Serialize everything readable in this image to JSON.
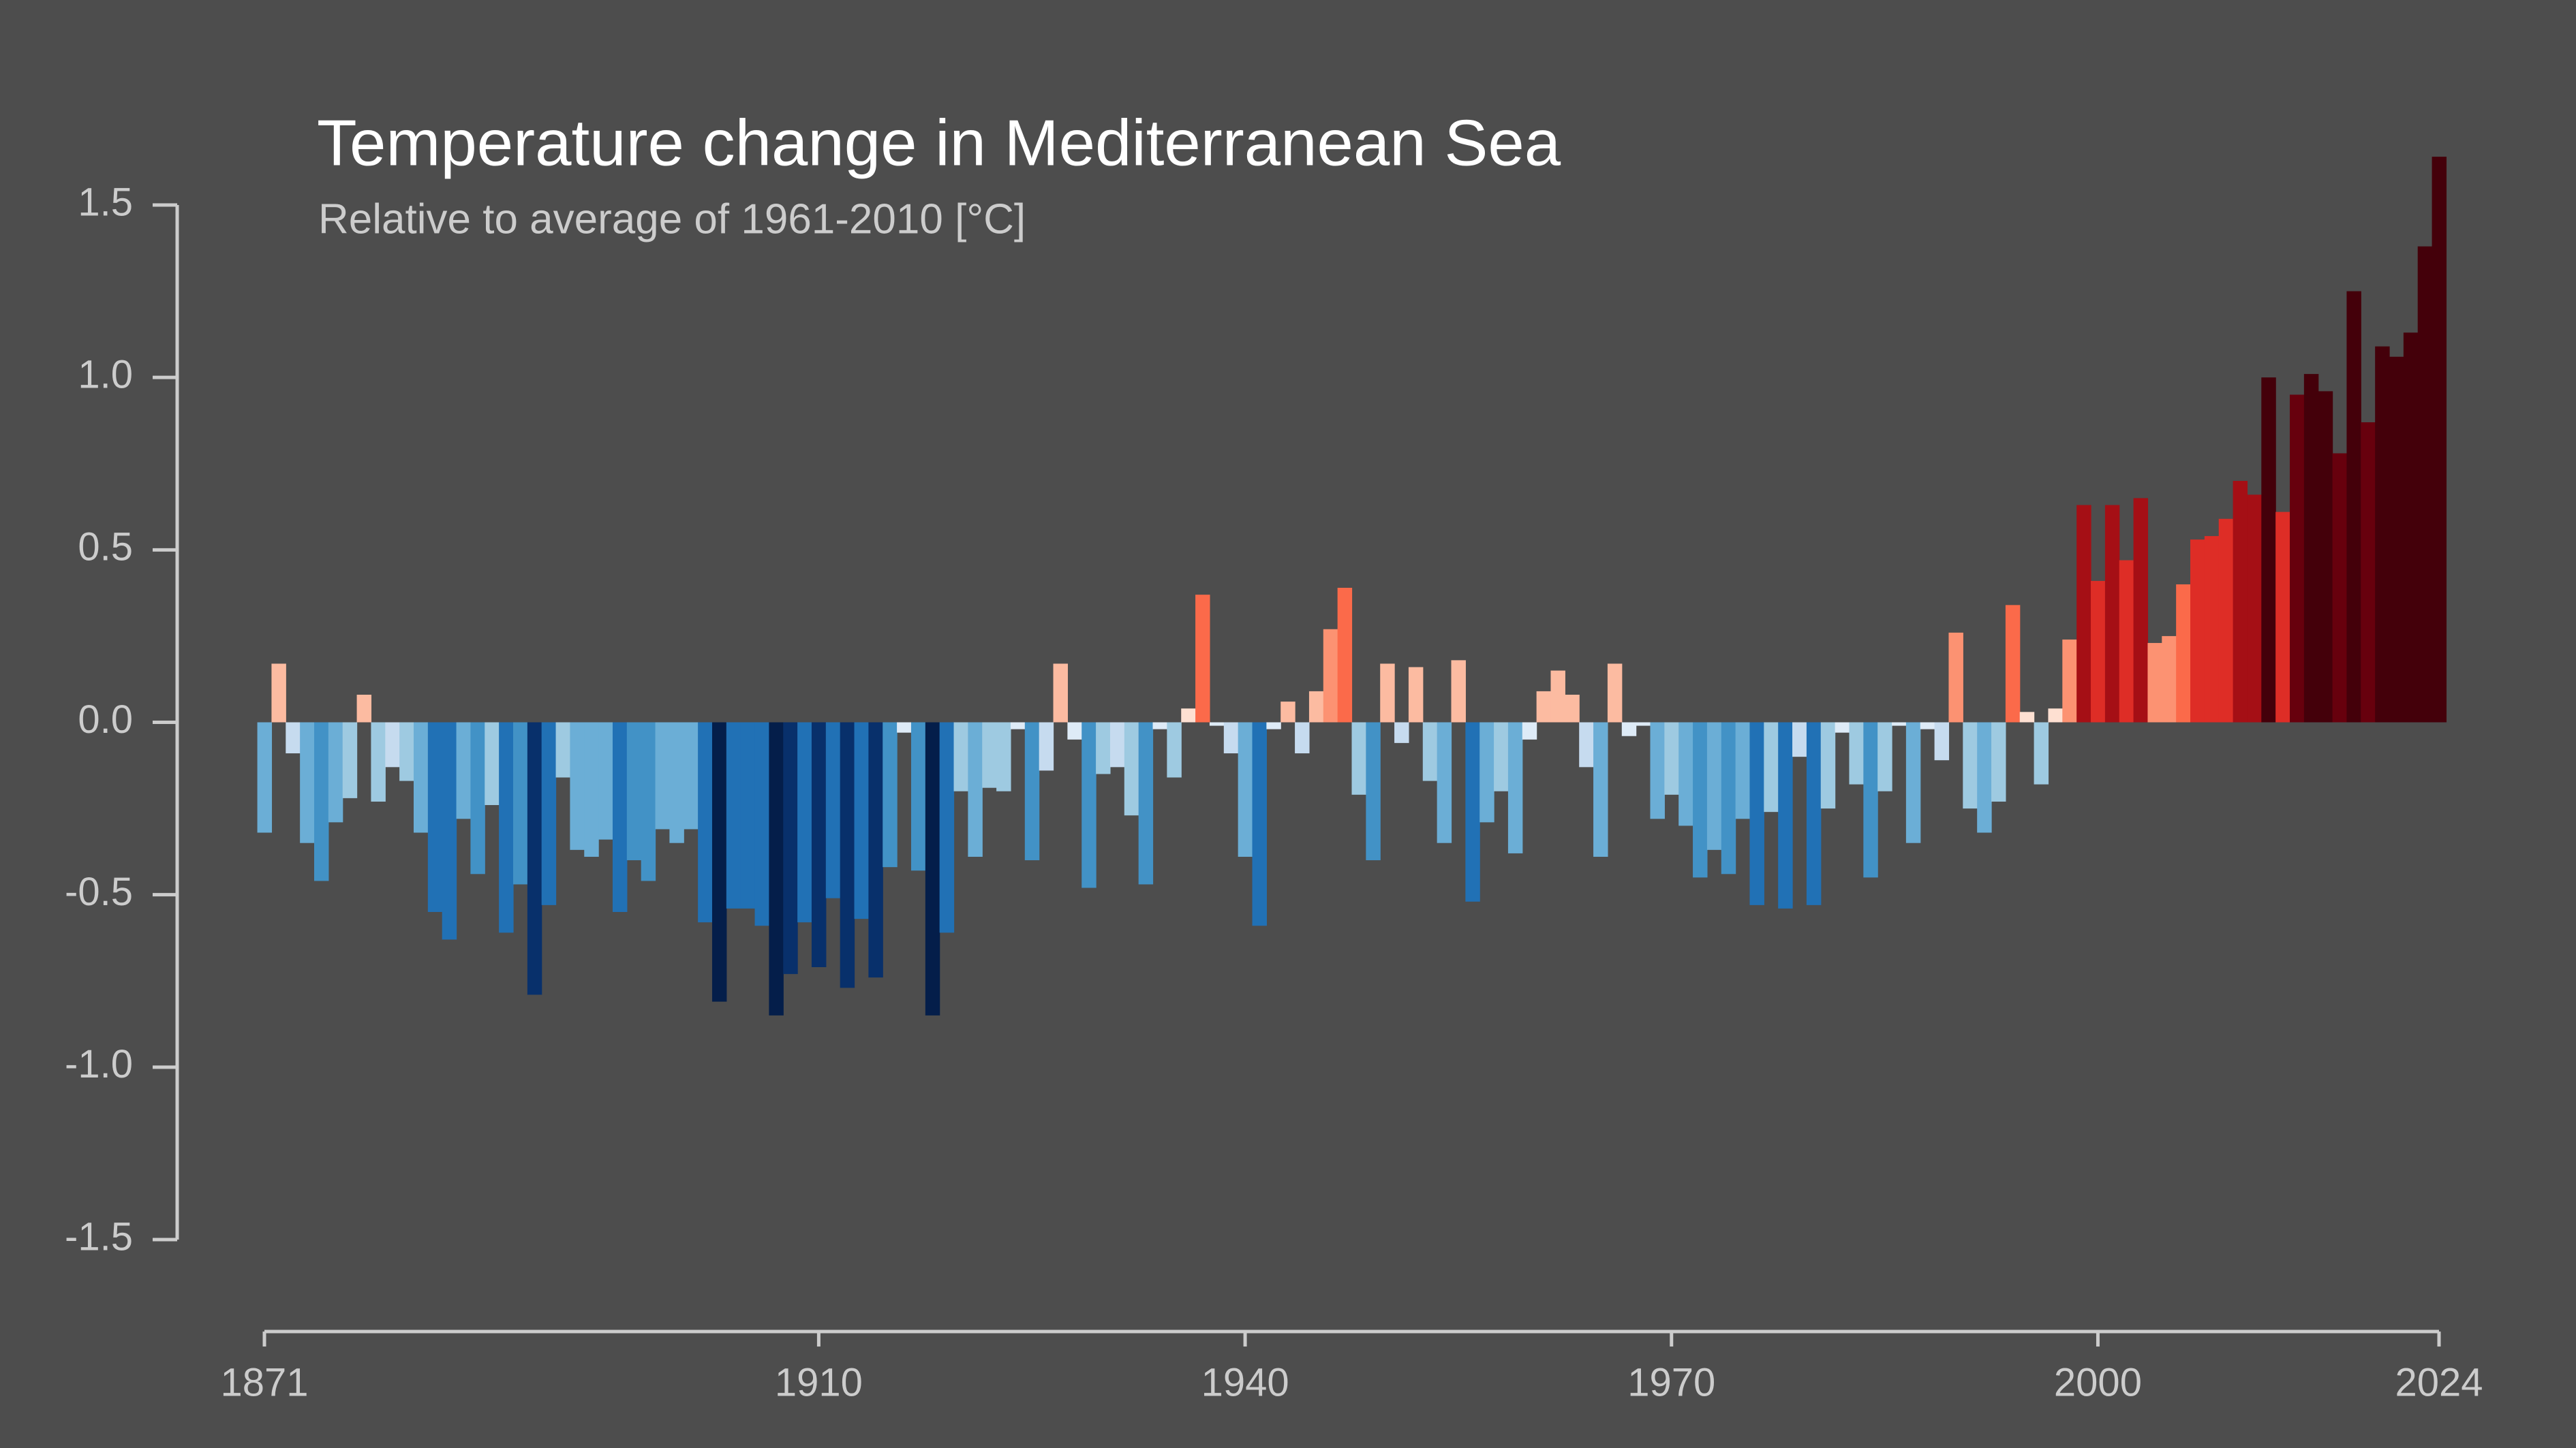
{
  "chart_data": {
    "type": "bar",
    "title": "Temperature change in Mediterranean Sea",
    "subtitle": "Relative to average of 1961-2010  [°C]",
    "x": [
      1871,
      1872,
      1873,
      1874,
      1875,
      1876,
      1877,
      1878,
      1879,
      1880,
      1881,
      1882,
      1883,
      1884,
      1885,
      1886,
      1887,
      1888,
      1889,
      1890,
      1891,
      1892,
      1893,
      1894,
      1895,
      1896,
      1897,
      1898,
      1899,
      1900,
      1901,
      1902,
      1903,
      1904,
      1905,
      1906,
      1907,
      1908,
      1909,
      1910,
      1911,
      1912,
      1913,
      1914,
      1915,
      1916,
      1917,
      1918,
      1919,
      1920,
      1921,
      1922,
      1923,
      1924,
      1925,
      1926,
      1927,
      1928,
      1929,
      1930,
      1931,
      1932,
      1933,
      1934,
      1935,
      1936,
      1937,
      1938,
      1939,
      1940,
      1941,
      1942,
      1943,
      1944,
      1945,
      1946,
      1947,
      1948,
      1949,
      1950,
      1951,
      1952,
      1953,
      1954,
      1955,
      1956,
      1957,
      1958,
      1959,
      1960,
      1961,
      1962,
      1963,
      1964,
      1965,
      1966,
      1967,
      1968,
      1969,
      1970,
      1971,
      1972,
      1973,
      1974,
      1975,
      1976,
      1977,
      1978,
      1979,
      1980,
      1981,
      1982,
      1983,
      1984,
      1985,
      1986,
      1987,
      1988,
      1989,
      1990,
      1991,
      1992,
      1993,
      1994,
      1995,
      1996,
      1997,
      1998,
      1999,
      2000,
      2001,
      2002,
      2003,
      2004,
      2005,
      2006,
      2007,
      2008,
      2009,
      2010,
      2011,
      2012,
      2013,
      2014,
      2015,
      2016,
      2017,
      2018,
      2019,
      2020,
      2021,
      2022,
      2023,
      2024
    ],
    "values": [
      -0.32,
      0.17,
      -0.09,
      -0.35,
      -0.46,
      -0.29,
      -0.22,
      0.08,
      -0.23,
      -0.13,
      -0.17,
      -0.32,
      -0.55,
      -0.63,
      -0.28,
      -0.44,
      -0.24,
      -0.61,
      -0.47,
      -0.79,
      -0.53,
      -0.16,
      -0.37,
      -0.39,
      -0.34,
      -0.55,
      -0.4,
      -0.46,
      -0.31,
      -0.35,
      -0.31,
      -0.58,
      -0.81,
      -0.54,
      -0.54,
      -0.59,
      -0.85,
      -0.73,
      -0.58,
      -0.71,
      -0.51,
      -0.77,
      -0.57,
      -0.74,
      -0.42,
      -0.03,
      -0.43,
      -0.85,
      -0.61,
      -0.2,
      -0.39,
      -0.19,
      -0.2,
      -0.02,
      -0.4,
      -0.14,
      0.17,
      -0.05,
      -0.48,
      -0.15,
      -0.13,
      -0.27,
      -0.47,
      -0.02,
      -0.16,
      0.04,
      0.37,
      -0.01,
      -0.09,
      -0.39,
      -0.59,
      -0.02,
      0.06,
      -0.09,
      0.09,
      0.27,
      0.39,
      -0.21,
      -0.4,
      0.17,
      -0.06,
      0.16,
      -0.17,
      -0.35,
      0.18,
      -0.52,
      -0.29,
      -0.2,
      -0.38,
      -0.05,
      0.09,
      0.15,
      0.08,
      -0.13,
      -0.39,
      0.17,
      -0.04,
      -0.01,
      -0.28,
      -0.21,
      -0.3,
      -0.45,
      -0.37,
      -0.44,
      -0.28,
      -0.53,
      -0.26,
      -0.54,
      -0.1,
      -0.53,
      -0.25,
      -0.03,
      -0.18,
      -0.45,
      -0.2,
      -0.01,
      -0.35,
      -0.02,
      -0.11,
      0.26,
      -0.25,
      -0.32,
      -0.23,
      0.34,
      0.03,
      -0.18,
      0.04,
      0.24,
      0.63,
      0.41,
      0.63,
      0.47,
      0.65,
      0.23,
      0.25,
      0.4,
      0.53,
      0.54,
      0.59,
      0.7,
      0.66,
      1.0,
      0.61,
      0.95,
      1.01,
      0.96,
      0.78,
      1.25,
      0.87,
      1.09,
      1.06,
      1.13,
      1.38,
      1.64
    ],
    "colors": [
      "#6baed6",
      "#fcbba1",
      "#c6dbef",
      "#6baed6",
      "#4292c6",
      "#6baed6",
      "#9ecae1",
      "#fcbba1",
      "#9ecae1",
      "#c6dbef",
      "#9ecae1",
      "#6baed6",
      "#2171b5",
      "#2171b5",
      "#6baed6",
      "#4292c6",
      "#9ecae1",
      "#2171b5",
      "#4292c6",
      "#08306b",
      "#2171b5",
      "#9ecae1",
      "#6baed6",
      "#6baed6",
      "#6baed6",
      "#2171b5",
      "#4292c6",
      "#4292c6",
      "#6baed6",
      "#6baed6",
      "#6baed6",
      "#2171b5",
      "#041e4a",
      "#2171b5",
      "#2171b5",
      "#2171b5",
      "#041e4a",
      "#08306b",
      "#2171b5",
      "#08306b",
      "#2171b5",
      "#08306b",
      "#2171b5",
      "#08306b",
      "#4292c6",
      "#deebf7",
      "#4292c6",
      "#041e4a",
      "#2171b5",
      "#9ecae1",
      "#6baed6",
      "#9ecae1",
      "#9ecae1",
      "#deebf7",
      "#4292c6",
      "#c6dbef",
      "#fcbba1",
      "#deebf7",
      "#4292c6",
      "#9ecae1",
      "#c6dbef",
      "#9ecae1",
      "#4292c6",
      "#deebf7",
      "#9ecae1",
      "#fee0d2",
      "#fb6a4a",
      "#deebf7",
      "#c6dbef",
      "#6baed6",
      "#2171b5",
      "#deebf7",
      "#fcbba1",
      "#c6dbef",
      "#fcbba1",
      "#fc9272",
      "#fb6a4a",
      "#9ecae1",
      "#4292c6",
      "#fcbba1",
      "#c6dbef",
      "#fcbba1",
      "#9ecae1",
      "#6baed6",
      "#fcbba1",
      "#2171b5",
      "#6baed6",
      "#9ecae1",
      "#6baed6",
      "#deebf7",
      "#fcbba1",
      "#fcbba1",
      "#fcbba1",
      "#c6dbef",
      "#6baed6",
      "#fcbba1",
      "#deebf7",
      "#deebf7",
      "#6baed6",
      "#9ecae1",
      "#6baed6",
      "#4292c6",
      "#6baed6",
      "#4292c6",
      "#6baed6",
      "#2171b5",
      "#9ecae1",
      "#2171b5",
      "#c6dbef",
      "#2171b5",
      "#9ecae1",
      "#deebf7",
      "#9ecae1",
      "#4292c6",
      "#9ecae1",
      "#deebf7",
      "#6baed6",
      "#deebf7",
      "#c6dbef",
      "#fc9272",
      "#9ecae1",
      "#6baed6",
      "#9ecae1",
      "#fb6a4a",
      "#fee0d2",
      "#9ecae1",
      "#fee0d2",
      "#fc9272",
      "#a50f15",
      "#de2d26",
      "#a50f15",
      "#de2d26",
      "#a50f15",
      "#fc9272",
      "#fc9272",
      "#fb6a4a",
      "#de2d26",
      "#de2d26",
      "#de2d26",
      "#a50f15",
      "#a50f15",
      "#44000a",
      "#de2d26",
      "#67000d",
      "#44000a",
      "#44000a",
      "#67000d",
      "#44000a",
      "#67000d",
      "#44000a",
      "#44000a",
      "#44000a",
      "#44000a",
      "#44000a"
    ],
    "xlim": [
      1871,
      2024
    ],
    "xticks": [
      1871,
      1910,
      1940,
      1970,
      2000,
      2024
    ],
    "ylim": [
      -1.5,
      1.5
    ],
    "yticks": [
      1.5,
      {
        "value": 1.0,
        "label": "1.0"
      },
      0.5,
      {
        "value": 0.0,
        "label": "0.0"
      },
      -0.5,
      {
        "value": -1.0,
        "label": "-1.0"
      },
      -1.5
    ]
  }
}
